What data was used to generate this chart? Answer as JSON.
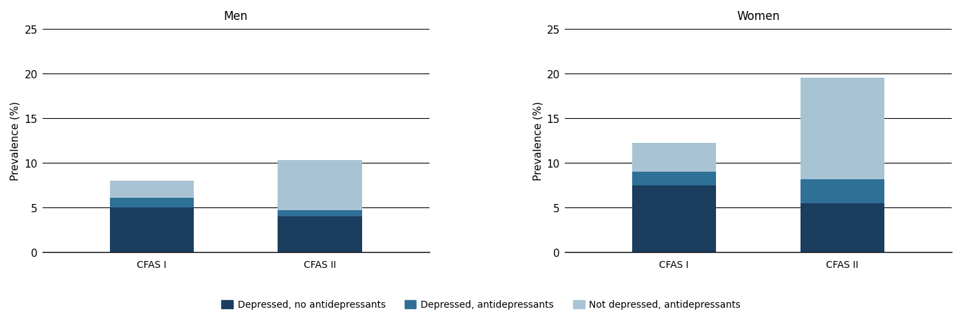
{
  "men": {
    "title": "Men",
    "categories": [
      "CFAS I",
      "CFAS II"
    ],
    "depressed_no_antidep": [
      5.0,
      4.0
    ],
    "depressed_antidep": [
      1.1,
      0.7
    ],
    "not_depressed_antidep": [
      1.9,
      5.6
    ]
  },
  "women": {
    "title": "Women",
    "categories": [
      "CFAS I",
      "CFAS II"
    ],
    "depressed_no_antidep": [
      7.5,
      5.5
    ],
    "depressed_antidep": [
      1.5,
      2.7
    ],
    "not_depressed_antidep": [
      3.2,
      11.3
    ]
  },
  "colors": {
    "depressed_no_antidep": "#1b3d5e",
    "depressed_antidep": "#2e7096",
    "not_depressed_antidep": "#a8c4d4"
  },
  "ylabel": "Prevalence (%)",
  "ylim": [
    0,
    25
  ],
  "yticks": [
    0,
    5,
    10,
    15,
    20,
    25
  ],
  "legend_labels": [
    "Depressed, no antidepressants",
    "Depressed, antidepressants",
    "Not depressed, antidepressants"
  ],
  "bar_width": 0.5,
  "background_color": "#ffffff",
  "fontsize": 11,
  "title_fontsize": 12
}
